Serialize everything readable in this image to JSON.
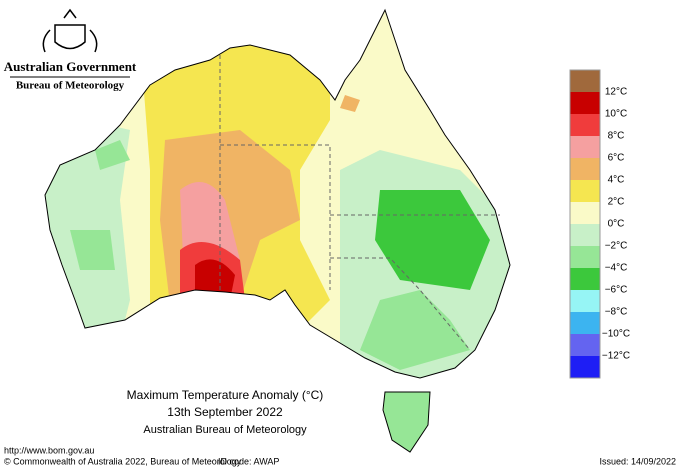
{
  "header": {
    "government": "Australian Government",
    "agency": "Bureau of Meteorology"
  },
  "map": {
    "title": "Maximum Temperature Anomaly (°C)",
    "date": "13th September 2022",
    "source": "Australian Bureau of Meteorology"
  },
  "legend": {
    "colors": [
      "#a0693c",
      "#c80000",
      "#f03c3c",
      "#f5a0a0",
      "#f0b464",
      "#f5e650",
      "#fafac8",
      "#c8f0c8",
      "#96e696",
      "#3cc83c",
      "#96f5f5",
      "#3cb4f0",
      "#6464f0",
      "#1e1ef5"
    ],
    "labels": [
      "12°C",
      "10°C",
      "8°C",
      "6°C",
      "4°C",
      "2°C",
      "0°C",
      "−2°C",
      "−4°C",
      "−6°C",
      "−8°C",
      "−10°C",
      "−12°C"
    ]
  },
  "footer": {
    "url": "http://www.bom.gov.au",
    "copyright": "© Commonwealth of Australia 2022, Bureau of Meteorology",
    "id_code": "ID code: AWAP",
    "issued": "Issued: 14/09/2022"
  }
}
